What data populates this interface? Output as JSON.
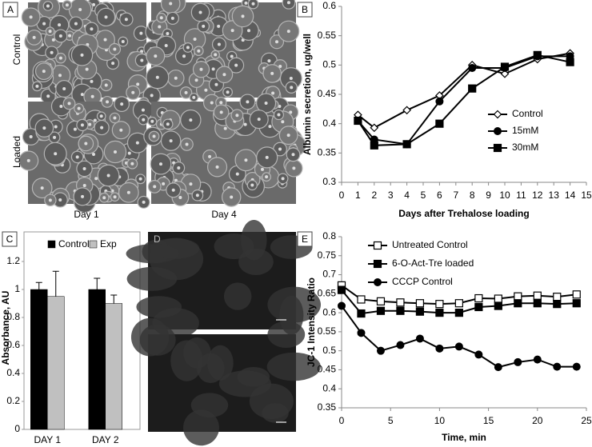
{
  "chart_data": [
    {
      "type": "image",
      "panel": "A",
      "row_labels": [
        "Control",
        "Loaded"
      ],
      "column_labels": [
        "Day 1",
        "Day 4"
      ]
    },
    {
      "type": "line",
      "panel": "B",
      "x_label": "Days after Trehalose loading",
      "y_label": "Albumin secretion, ug/well",
      "x": [
        1,
        2,
        4,
        6,
        8,
        10,
        12,
        14
      ],
      "series": [
        {
          "name": "Control",
          "color": "#000000",
          "marker": "diamond-open",
          "values": [
            0.415,
            0.393,
            0.423,
            0.448,
            0.5,
            0.485,
            0.51,
            0.52
          ]
        },
        {
          "name": "15mM",
          "color": "#000000",
          "marker": "circle",
          "values": [
            0.405,
            0.373,
            0.365,
            0.438,
            0.495,
            0.495,
            0.515,
            0.515
          ]
        },
        {
          "name": "30mM",
          "color": "#000000",
          "marker": "square",
          "values": [
            0.405,
            0.363,
            0.365,
            0.4,
            0.46,
            0.497,
            0.517,
            0.505
          ]
        }
      ],
      "xlim": [
        0,
        15
      ],
      "xticks": [
        0,
        1,
        2,
        3,
        4,
        5,
        6,
        7,
        8,
        9,
        10,
        11,
        12,
        13,
        14,
        15
      ],
      "ylim": [
        0.3,
        0.6
      ],
      "yticks": [
        0.3,
        0.35,
        0.4,
        0.45,
        0.5,
        0.55,
        0.6
      ],
      "legend_position": "lower-right"
    },
    {
      "type": "bar",
      "panel": "C",
      "y_label": "Absorbance, AU",
      "categories": [
        "DAY 1",
        "DAY 2"
      ],
      "series": [
        {
          "name": "Control",
          "color": "#000000",
          "values": [
            1.0,
            1.0
          ],
          "errors": [
            0.05,
            0.08
          ]
        },
        {
          "name": "Exp",
          "color": "#c0c0c0",
          "values": [
            0.95,
            0.9
          ],
          "errors": [
            0.18,
            0.06
          ]
        }
      ],
      "ylim": [
        0,
        1.2
      ],
      "yticks": [
        0,
        0.2,
        0.4,
        0.6,
        0.8,
        1,
        1.2
      ],
      "legend_position": "top"
    },
    {
      "type": "image",
      "panel": "D"
    },
    {
      "type": "line",
      "panel": "E",
      "x_label": "Time, min",
      "y_label": "JC-1  Intensity Ratio",
      "x": [
        0,
        2,
        4,
        6,
        8,
        10,
        12,
        14,
        16,
        18,
        20,
        22,
        24
      ],
      "series": [
        {
          "name": "Untreated Control",
          "color": "#000000",
          "marker": "square-open",
          "values": [
            0.672,
            0.635,
            0.63,
            0.627,
            0.625,
            0.623,
            0.625,
            0.638,
            0.637,
            0.643,
            0.645,
            0.642,
            0.648
          ]
        },
        {
          "name": "6-O-Act-Tre loaded",
          "color": "#000000",
          "marker": "square",
          "values": [
            0.66,
            0.598,
            0.605,
            0.605,
            0.603,
            0.6,
            0.6,
            0.615,
            0.618,
            0.625,
            0.625,
            0.623,
            0.625
          ]
        },
        {
          "name": "CCCP  Control",
          "color": "#000000",
          "marker": "circle",
          "values": [
            0.618,
            0.547,
            0.5,
            0.515,
            0.532,
            0.506,
            0.511,
            0.49,
            0.457,
            0.47,
            0.477,
            0.458,
            0.458
          ]
        }
      ],
      "xlim": [
        0,
        25
      ],
      "xticks": [
        0,
        5,
        10,
        15,
        20,
        25
      ],
      "ylim": [
        0.35,
        0.8
      ],
      "yticks": [
        0.35,
        0.4,
        0.45,
        0.5,
        0.55,
        0.6,
        0.65,
        0.7,
        0.75,
        0.8
      ],
      "legend_position": "upper-left"
    }
  ]
}
